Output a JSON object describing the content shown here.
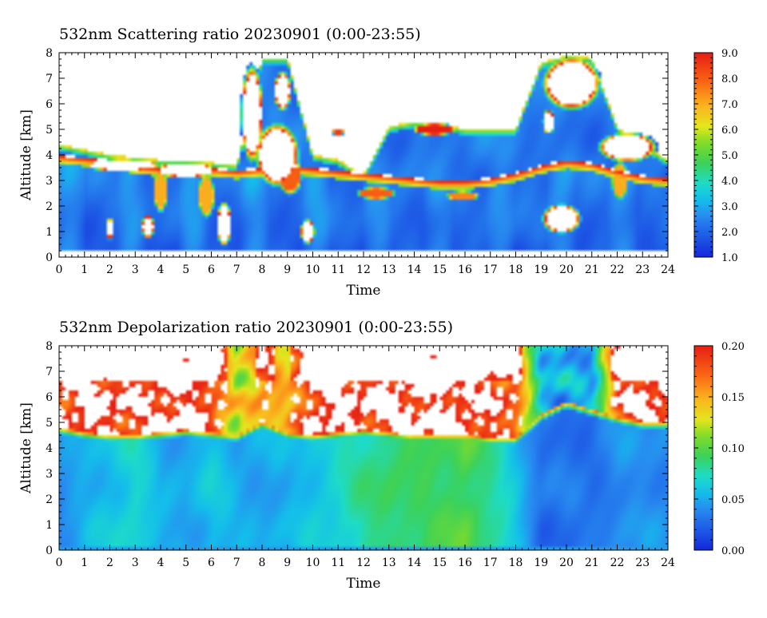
{
  "chart_data": [
    {
      "type": "heatmap",
      "title": "532nm Scattering ratio  20230901 (0:00-23:55)",
      "xlabel": "Time",
      "ylabel": "Altitude [km]",
      "xlim": [
        0,
        24
      ],
      "ylim": [
        0,
        8
      ],
      "x_ticks": [
        "0",
        "1",
        "2",
        "3",
        "4",
        "5",
        "6",
        "7",
        "8",
        "9",
        "10",
        "11",
        "12",
        "13",
        "14",
        "15",
        "16",
        "17",
        "18",
        "19",
        "20",
        "21",
        "22",
        "23",
        "24"
      ],
      "y_ticks": [
        "0",
        "1",
        "2",
        "3",
        "4",
        "5",
        "6",
        "7",
        "8"
      ],
      "colorbar": {
        "min": 1.0,
        "max": 9.0,
        "ticks": [
          "1.0",
          "2.0",
          "3.0",
          "4.0",
          "5.0",
          "6.0",
          "7.0",
          "8.0",
          "9.0"
        ]
      },
      "over_range_color": "#ffffff",
      "layers": {
        "boundary_layer_top_km": [
          4.0,
          3.9,
          3.8,
          3.6,
          3.5,
          3.6,
          3.5,
          3.4,
          3.5,
          3.6,
          3.5,
          3.4,
          3.3,
          3.2,
          3.1,
          3.0,
          3.0,
          3.1,
          3.3,
          3.6,
          3.8,
          3.7,
          3.4,
          3.2,
          3.1
        ],
        "cloud_deck_top_km": [
          4.4,
          4.2,
          4.0,
          3.9,
          3.8,
          3.8,
          3.7,
          3.6,
          7.8,
          7.8,
          4.0,
          3.8,
          3.2,
          5.1,
          5.3,
          5.2,
          5.0,
          5.0,
          5.0,
          7.6,
          7.9,
          7.8,
          5.1,
          4.4,
          3.8
        ],
        "clouds": [
          {
            "t": 7.6,
            "z": 5.6,
            "ht": 0.45,
            "hz": 2.0,
            "v": 9.5
          },
          {
            "t": 8.8,
            "z": 6.5,
            "ht": 0.35,
            "hz": 0.8,
            "v": 9.5
          },
          {
            "t": 8.6,
            "z": 4.0,
            "ht": 0.9,
            "hz": 1.3,
            "v": 9.5
          },
          {
            "t": 9.1,
            "z": 3.2,
            "ht": 0.5,
            "hz": 0.8,
            "v": 8.0
          },
          {
            "t": 20.2,
            "z": 6.8,
            "ht": 1.2,
            "hz": 1.1,
            "v": 9.5
          },
          {
            "t": 19.3,
            "z": 5.3,
            "ht": 0.25,
            "hz": 0.5,
            "v": 9.5
          },
          {
            "t": 22.4,
            "z": 4.3,
            "ht": 1.2,
            "hz": 0.6,
            "v": 9.5
          },
          {
            "t": 14.8,
            "z": 5.0,
            "ht": 0.9,
            "hz": 0.25,
            "v": 9.0
          },
          {
            "t": 12.5,
            "z": 2.5,
            "ht": 0.8,
            "hz": 0.25,
            "v": 8.0
          },
          {
            "t": 15.9,
            "z": 2.4,
            "ht": 0.7,
            "hz": 0.2,
            "v": 7.5
          },
          {
            "t": 2.5,
            "z": 3.6,
            "ht": 1.6,
            "hz": 0.25,
            "v": 9.5
          },
          {
            "t": 5.0,
            "z": 3.4,
            "ht": 1.4,
            "hz": 0.3,
            "v": 9.5
          },
          {
            "t": 11.0,
            "z": 4.9,
            "ht": 0.25,
            "hz": 0.15,
            "v": 8.5
          },
          {
            "t": 4.0,
            "z": 2.6,
            "ht": 0.3,
            "hz": 0.9,
            "v": 7.0
          },
          {
            "t": 5.8,
            "z": 2.4,
            "ht": 0.35,
            "hz": 0.9,
            "v": 7.0
          },
          {
            "t": 22.1,
            "z": 3.0,
            "ht": 0.35,
            "hz": 0.8,
            "v": 7.0
          },
          {
            "t": 19.8,
            "z": 1.5,
            "ht": 0.8,
            "hz": 0.6,
            "v": 9.5
          },
          {
            "t": 2.0,
            "z": 1.1,
            "ht": 0.12,
            "hz": 0.5,
            "v": 9.5
          },
          {
            "t": 3.5,
            "z": 1.2,
            "ht": 0.25,
            "hz": 0.5,
            "v": 9.5
          },
          {
            "t": 6.5,
            "z": 1.3,
            "ht": 0.3,
            "hz": 0.9,
            "v": 9.5
          },
          {
            "t": 9.8,
            "z": 1.0,
            "ht": 0.3,
            "hz": 0.5,
            "v": 9.5
          }
        ]
      }
    },
    {
      "type": "heatmap",
      "title": "532nm Depolarization ratio  20230901 (0:00-23:55)",
      "xlabel": "Time",
      "ylabel": "Altitude [km]",
      "xlim": [
        0,
        24
      ],
      "ylim": [
        0,
        8
      ],
      "x_ticks": [
        "0",
        "1",
        "2",
        "3",
        "4",
        "5",
        "6",
        "7",
        "8",
        "9",
        "10",
        "11",
        "12",
        "13",
        "14",
        "15",
        "16",
        "17",
        "18",
        "19",
        "20",
        "21",
        "22",
        "23",
        "24"
      ],
      "y_ticks": [
        "0",
        "1",
        "2",
        "3",
        "4",
        "5",
        "6",
        "7",
        "8"
      ],
      "colorbar": {
        "min": 0.0,
        "max": 0.2,
        "ticks": [
          "0.00",
          "0.05",
          "0.10",
          "0.15",
          "0.20"
        ]
      },
      "over_range_color": "#ffffff",
      "layers": {
        "lower_layer_top_km": [
          4.8,
          4.6,
          4.5,
          4.5,
          4.6,
          4.7,
          4.6,
          4.5,
          5.0,
          4.6,
          4.5,
          4.6,
          4.7,
          4.6,
          4.5,
          4.5,
          4.5,
          4.4,
          4.4,
          5.3,
          5.8,
          5.5,
          5.2,
          5.0,
          5.0
        ],
        "lower_layer_values": [
          0.04,
          0.05,
          0.06,
          0.07,
          0.05,
          0.05,
          0.06,
          0.05,
          0.05,
          0.05,
          0.06,
          0.07,
          0.08,
          0.09,
          0.09,
          0.09,
          0.1,
          0.08,
          0.06,
          0.03,
          0.03,
          0.03,
          0.04,
          0.04,
          0.04
        ],
        "upper_layer_values": [
          0.19,
          0.2,
          0.2,
          0.19,
          0.2,
          0.2,
          0.19,
          0.12,
          0.16,
          0.14,
          0.2,
          0.2,
          0.2,
          0.2,
          0.2,
          0.2,
          0.2,
          0.19,
          0.18,
          0.06,
          0.05,
          0.05,
          0.18,
          0.2,
          0.2
        ]
      }
    }
  ]
}
